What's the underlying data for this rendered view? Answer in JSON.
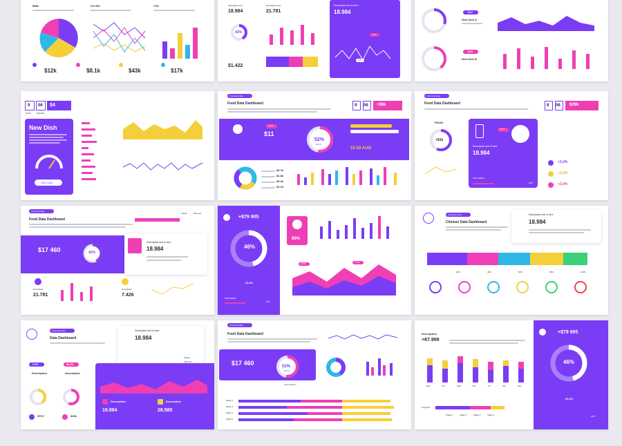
{
  "colors": {
    "purple": "#7b3cf5",
    "pink": "#ee3fb5",
    "yellow": "#f5cf3a",
    "cyan": "#2fb8e6",
    "green": "#3ad17a",
    "orange": "#f59a3a"
  },
  "s1": {
    "top_labels": [
      "$58k",
      "+14 000",
      "+3%"
    ],
    "values": [
      "$12k",
      "$8.1k",
      "$43k",
      "$17k"
    ],
    "caption": "Description"
  },
  "s2": {
    "values": [
      "18.984",
      "21.781",
      "$1.422"
    ],
    "caption": "Description Text",
    "donut": "42%",
    "panel_title": "Description text is here",
    "panel_value": "18.984",
    "badges": [
      "+9%",
      "+4%"
    ]
  },
  "s3": {
    "badges": [
      "$14",
      "$19"
    ],
    "captions": [
      "New Dish A",
      "New Dish B"
    ]
  },
  "s4": {
    "date_parts": [
      "9",
      "06",
      "$4"
    ],
    "date_caps": [
      "DATE",
      "HOURS"
    ],
    "panel_title": "New Dish",
    "button": "Give Dish"
  },
  "s5": {
    "tag": "Overview Data",
    "title": "Food Data Dashboard",
    "price": "$11",
    "badge": "+8,2%",
    "donut": "52%",
    "donut_cap": "DOLS",
    "date": "15-19 AUG",
    "header_chip": "+$6k",
    "stats": [
      "$4.7k",
      "$2.8k",
      "$6.4k",
      "$2.1k"
    ],
    "chip_count": "9",
    "chip_count2": "06"
  },
  "s6": {
    "tag": "Overview Data",
    "title": "Food Data Dashboard",
    "today": "TODAY",
    "circle": "+$1k",
    "badge": "+8,2%",
    "value": "18.984",
    "card_title": "Description text is here",
    "progress_label": "PROGRESS",
    "progress_val": "25%",
    "changes": [
      "+3,4%",
      "+1,2%",
      "+2,4%"
    ],
    "header_chip": "$29k",
    "chip1": "9",
    "chip2": "06"
  },
  "s7": {
    "tag": "Overview Data",
    "title": "Food Data Dashboard",
    "big": "$17 460",
    "donut": "42%",
    "card_title": "Description text is here",
    "card_value": "18.984",
    "bottom": [
      "21.781",
      "7.426"
    ],
    "legend": [
      "Actual",
      "Planned"
    ],
    "bottom_caps": [
      "Description",
      "Description"
    ]
  },
  "s8": {
    "header": "+$79 905",
    "donut": "46%",
    "card_pct": "85%",
    "sub": "29,4%",
    "progress_label": "PROGRESS",
    "progress_val": "25%",
    "badges": [
      "+2,5%",
      "+7,8%"
    ]
  },
  "s9": {
    "tag": "Overview Data",
    "title": "Chicken Data Dashboard",
    "value": "18.984",
    "card_title": "Description text is here",
    "icons_row": [
      "20%",
      "40%",
      "60%",
      "80%",
      "100%"
    ]
  },
  "s10": {
    "tag": "Overview Data",
    "title": "Data Dashboard",
    "card_title": "Description text is here",
    "card_value": "18.984",
    "pills": [
      "27k+",
      "$3,5k"
    ],
    "caps": [
      "Description",
      "Description"
    ],
    "vals_left": [
      "20%+",
      "$43k"
    ],
    "bottom_caps": [
      "Description",
      "Description"
    ],
    "bottom_vals": [
      "18.984",
      "28.580"
    ],
    "legend": [
      "Actual",
      "Planned"
    ]
  },
  "s11": {
    "tag": "Overview Data",
    "title": "Food Data Dashboard",
    "big": "$17 460",
    "donut": "52%",
    "donut_cap": "DOLS",
    "weeks": [
      "Week 1",
      "Week 2",
      "Week 3",
      "Week 4"
    ],
    "caption": "Lorem Ipsum"
  },
  "s12": {
    "title": "Description",
    "value": ">67.999",
    "header": "+$79 905",
    "donut": "46%",
    "sub": "29,4%",
    "progress_label": "Progress",
    "progress_val": "25%",
    "days": [
      "Mon",
      "Tue",
      "Wed",
      "Thu",
      "Fri",
      "Sat",
      "Sun"
    ],
    "legend": [
      "Stage 1",
      "Stage 2",
      "Stage 3",
      "Stage 4"
    ]
  }
}
